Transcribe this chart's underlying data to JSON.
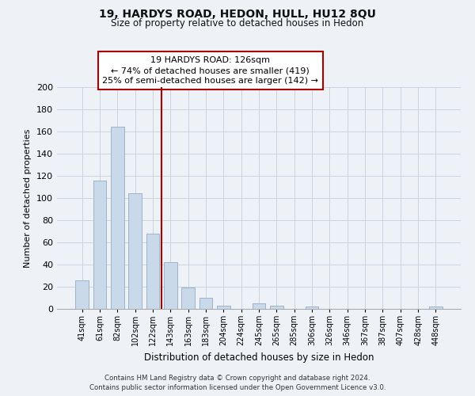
{
  "title": "19, HARDYS ROAD, HEDON, HULL, HU12 8QU",
  "subtitle": "Size of property relative to detached houses in Hedon",
  "xlabel": "Distribution of detached houses by size in Hedon",
  "ylabel": "Number of detached properties",
  "bar_labels": [
    "41sqm",
    "61sqm",
    "82sqm",
    "102sqm",
    "122sqm",
    "143sqm",
    "163sqm",
    "183sqm",
    "204sqm",
    "224sqm",
    "245sqm",
    "265sqm",
    "285sqm",
    "306sqm",
    "326sqm",
    "346sqm",
    "367sqm",
    "387sqm",
    "407sqm",
    "428sqm",
    "448sqm"
  ],
  "bar_values": [
    26,
    116,
    164,
    104,
    68,
    42,
    19,
    10,
    3,
    0,
    5,
    3,
    0,
    2,
    0,
    0,
    0,
    0,
    0,
    0,
    2
  ],
  "bar_color": "#c9d9ea",
  "bar_edge_color": "#9ab4cc",
  "vline_index": 4,
  "vline_color": "#aa0000",
  "annotation_line1": "19 HARDYS ROAD: 126sqm",
  "annotation_line2": "← 74% of detached houses are smaller (419)",
  "annotation_line3": "25% of semi-detached houses are larger (142) →",
  "annotation_box_color": "#ffffff",
  "annotation_box_edge": "#aa0000",
  "ylim": [
    0,
    200
  ],
  "yticks": [
    0,
    20,
    40,
    60,
    80,
    100,
    120,
    140,
    160,
    180,
    200
  ],
  "footer_line1": "Contains HM Land Registry data © Crown copyright and database right 2024.",
  "footer_line2": "Contains public sector information licensed under the Open Government Licence v3.0.",
  "bg_color": "#eef2f7",
  "plot_bg_color": "#eef2f7",
  "grid_color": "#c8d4e0"
}
